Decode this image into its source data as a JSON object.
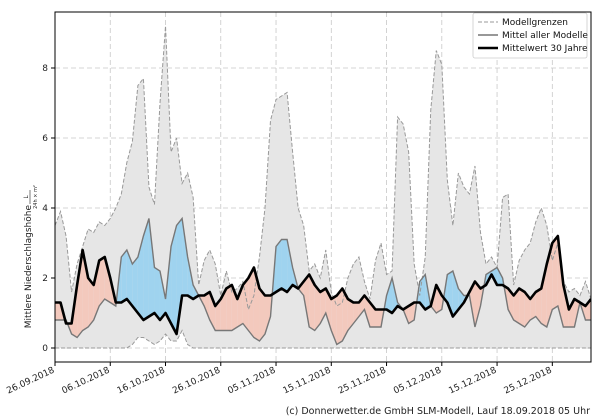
{
  "chart_data": {
    "type": "line",
    "title": "",
    "ylabel": "Mittlere Niederschlagshöhe",
    "ylabel_unit_numerator": "L",
    "ylabel_unit_denominator": "24h × m²",
    "xlabel": "",
    "ylim": [
      -0.4,
      9.6
    ],
    "yticks": [
      0,
      2,
      4,
      6,
      8
    ],
    "xlim": [
      "2018-09-26",
      "2019-01-01"
    ],
    "xtick_labels": [
      "26.09.2018",
      "06.10.2018",
      "16.10.2018",
      "26.10.2018",
      "05.11.2018",
      "15.11.2018",
      "25.11.2018",
      "05.12.2018",
      "15.12.2018",
      "25.12.2018"
    ],
    "xtick_dates": [
      "2018-09-26",
      "2018-10-06",
      "2018-10-16",
      "2018-10-26",
      "2018-11-05",
      "2018-11-15",
      "2018-11-25",
      "2018-12-05",
      "2018-12-15",
      "2018-12-25"
    ],
    "grid": true,
    "legend_position": "top-right",
    "dates": [
      "2018-09-26",
      "2018-09-27",
      "2018-09-28",
      "2018-09-29",
      "2018-09-30",
      "2018-10-01",
      "2018-10-02",
      "2018-10-03",
      "2018-10-04",
      "2018-10-05",
      "2018-10-06",
      "2018-10-07",
      "2018-10-08",
      "2018-10-09",
      "2018-10-10",
      "2018-10-11",
      "2018-10-12",
      "2018-10-13",
      "2018-10-14",
      "2018-10-15",
      "2018-10-16",
      "2018-10-17",
      "2018-10-18",
      "2018-10-19",
      "2018-10-20",
      "2018-10-21",
      "2018-10-22",
      "2018-10-23",
      "2018-10-24",
      "2018-10-25",
      "2018-10-26",
      "2018-10-27",
      "2018-10-28",
      "2018-10-29",
      "2018-10-30",
      "2018-10-31",
      "2018-11-01",
      "2018-11-02",
      "2018-11-03",
      "2018-11-04",
      "2018-11-05",
      "2018-11-06",
      "2018-11-07",
      "2018-11-08",
      "2018-11-09",
      "2018-11-10",
      "2018-11-11",
      "2018-11-12",
      "2018-11-13",
      "2018-11-14",
      "2018-11-15",
      "2018-11-16",
      "2018-11-17",
      "2018-11-18",
      "2018-11-19",
      "2018-11-20",
      "2018-11-21",
      "2018-11-22",
      "2018-11-23",
      "2018-11-24",
      "2018-11-25",
      "2018-11-26",
      "2018-11-27",
      "2018-11-28",
      "2018-11-29",
      "2018-11-30",
      "2018-12-01",
      "2018-12-02",
      "2018-12-03",
      "2018-12-04",
      "2018-12-05",
      "2018-12-06",
      "2018-12-07",
      "2018-12-08",
      "2018-12-09",
      "2018-12-10",
      "2018-12-11",
      "2018-12-12",
      "2018-12-13",
      "2018-12-14",
      "2018-12-15",
      "2018-12-16",
      "2018-12-17",
      "2018-12-18",
      "2018-12-19",
      "2018-12-20",
      "2018-12-21",
      "2018-12-22",
      "2018-12-23",
      "2018-12-24",
      "2018-12-25",
      "2018-12-26",
      "2018-12-27",
      "2018-12-28",
      "2018-12-29",
      "2018-12-30",
      "2018-12-31",
      "2019-01-01"
    ],
    "series": [
      {
        "name": "Modellgrenzen",
        "role": "band_max",
        "color": "#999999",
        "values": [
          3.5,
          3.9,
          3.2,
          1.6,
          2.4,
          2.9,
          3.4,
          3.3,
          3.6,
          3.5,
          3.7,
          4.0,
          4.4,
          5.3,
          5.9,
          7.5,
          7.7,
          4.6,
          4.1,
          7.0,
          9.2,
          5.6,
          6.0,
          4.7,
          5.0,
          4.3,
          1.8,
          2.5,
          2.8,
          2.4,
          1.5,
          2.2,
          1.6,
          1.7,
          1.9,
          1.1,
          1.5,
          2.6,
          4.0,
          6.5,
          7.1,
          7.2,
          7.3,
          5.6,
          4.0,
          3.5,
          2.2,
          2.4,
          2.0,
          2.8,
          1.6,
          1.2,
          1.3,
          2.0,
          2.4,
          2.6,
          1.9,
          1.4,
          2.5,
          3.0,
          2.1,
          2.2,
          6.6,
          6.4,
          5.6,
          2.4,
          1.5,
          2.6,
          6.8,
          8.5,
          8.1,
          4.8,
          3.5,
          5.0,
          4.6,
          4.4,
          5.2,
          3.3,
          2.4,
          2.6,
          2.3,
          4.3,
          4.4,
          1.8,
          2.5,
          2.8,
          3.0,
          3.6,
          4.0,
          3.5,
          2.5,
          3.0,
          1.9,
          1.6,
          1.7,
          1.5,
          1.9,
          1.4
        ]
      },
      {
        "name": "",
        "role": "band_min",
        "color": "#999999",
        "values": [
          0,
          0,
          0,
          0,
          0,
          0,
          0,
          0,
          0,
          0,
          0,
          0,
          0,
          0,
          0.1,
          0.3,
          0.3,
          0.2,
          0.1,
          0.2,
          0.4,
          0.2,
          0.2,
          0.5,
          0.1,
          0,
          0,
          0,
          0,
          0,
          0,
          0,
          0,
          0,
          0,
          0,
          0,
          0,
          0,
          0,
          0,
          0,
          0,
          0,
          0,
          0,
          0,
          0,
          0,
          0,
          0,
          0,
          0,
          0,
          0,
          0,
          0,
          0,
          0,
          0,
          0,
          0,
          0,
          0,
          0,
          0,
          0,
          0,
          0,
          0,
          0,
          0,
          0,
          0,
          0,
          0,
          0,
          0,
          0,
          0,
          0,
          0,
          0,
          0,
          0,
          0,
          0,
          0,
          0,
          0,
          0,
          0,
          0,
          0,
          0,
          0,
          0,
          0
        ]
      },
      {
        "name": "Mittel aller Modelle",
        "role": "model_mean",
        "color": "#777777",
        "values": [
          0.8,
          0.8,
          0.8,
          0.4,
          0.3,
          0.5,
          0.6,
          0.8,
          1.2,
          1.4,
          1.3,
          1.2,
          2.6,
          2.8,
          2.4,
          2.6,
          3.2,
          3.7,
          2.3,
          2.2,
          1.4,
          2.9,
          3.5,
          3.7,
          2.6,
          1.8,
          1.5,
          1.2,
          0.8,
          0.5,
          0.5,
          0.5,
          0.5,
          0.6,
          0.7,
          0.5,
          0.3,
          0.2,
          0.4,
          0.9,
          2.9,
          3.1,
          3.1,
          2.3,
          1.7,
          1.5,
          0.6,
          0.5,
          0.7,
          1.0,
          0.5,
          0.1,
          0.2,
          0.5,
          0.7,
          0.9,
          1.1,
          0.6,
          0.6,
          0.6,
          1.5,
          2.0,
          1.3,
          1.1,
          0.7,
          0.8,
          1.9,
          2.1,
          1.2,
          1.0,
          1.1,
          2.1,
          2.2,
          1.7,
          1.5,
          1.5,
          0.6,
          1.2,
          2.1,
          2.2,
          2.3,
          2.0,
          1.1,
          0.8,
          0.7,
          0.6,
          0.8,
          0.9,
          0.7,
          0.6,
          1.1,
          1.2,
          0.6,
          0.6,
          0.6,
          1.3,
          0.8,
          0.8
        ]
      },
      {
        "name": "Mittelwert 30 Jahre",
        "role": "climatology",
        "color": "#000000",
        "values": [
          1.3,
          1.3,
          0.7,
          0.7,
          1.8,
          2.8,
          2.0,
          1.8,
          2.5,
          2.6,
          2.0,
          1.3,
          1.3,
          1.4,
          1.2,
          1.0,
          0.8,
          0.9,
          1.0,
          0.8,
          1.0,
          0.7,
          0.4,
          1.5,
          1.5,
          1.4,
          1.5,
          1.5,
          1.6,
          1.2,
          1.4,
          1.7,
          1.8,
          1.4,
          1.8,
          2.0,
          2.3,
          1.7,
          1.5,
          1.5,
          1.6,
          1.7,
          1.6,
          1.8,
          1.7,
          1.9,
          2.1,
          1.8,
          1.6,
          1.7,
          1.4,
          1.5,
          1.7,
          1.4,
          1.3,
          1.3,
          1.5,
          1.3,
          1.1,
          1.1,
          1.1,
          1.0,
          1.2,
          1.1,
          1.2,
          1.3,
          1.3,
          1.1,
          1.2,
          1.8,
          1.5,
          1.3,
          0.9,
          1.1,
          1.3,
          1.6,
          1.9,
          1.7,
          1.8,
          2.1,
          1.8,
          1.8,
          1.7,
          1.5,
          1.7,
          1.6,
          1.4,
          1.6,
          1.7,
          2.4,
          3.0,
          3.2,
          1.8,
          1.1,
          1.4,
          1.3,
          1.2,
          1.4
        ]
      }
    ]
  },
  "colors": {
    "band_fill": "#e6e6e6",
    "above_fill": "#9fd3ef",
    "below_fill": "#f3c9bd",
    "grid": "#c8c8c8"
  },
  "legend": {
    "items": [
      {
        "label": "Modellgrenzen",
        "style": "dashed"
      },
      {
        "label": "Mittel aller Modelle",
        "style": "solid-gray"
      },
      {
        "label": "Mittelwert 30 Jahre",
        "style": "solid-thick-black"
      }
    ]
  },
  "footer": "(c) Donnerwetter.de GmbH SLM-Modell, Lauf 18.09.2018 05 Uhr"
}
